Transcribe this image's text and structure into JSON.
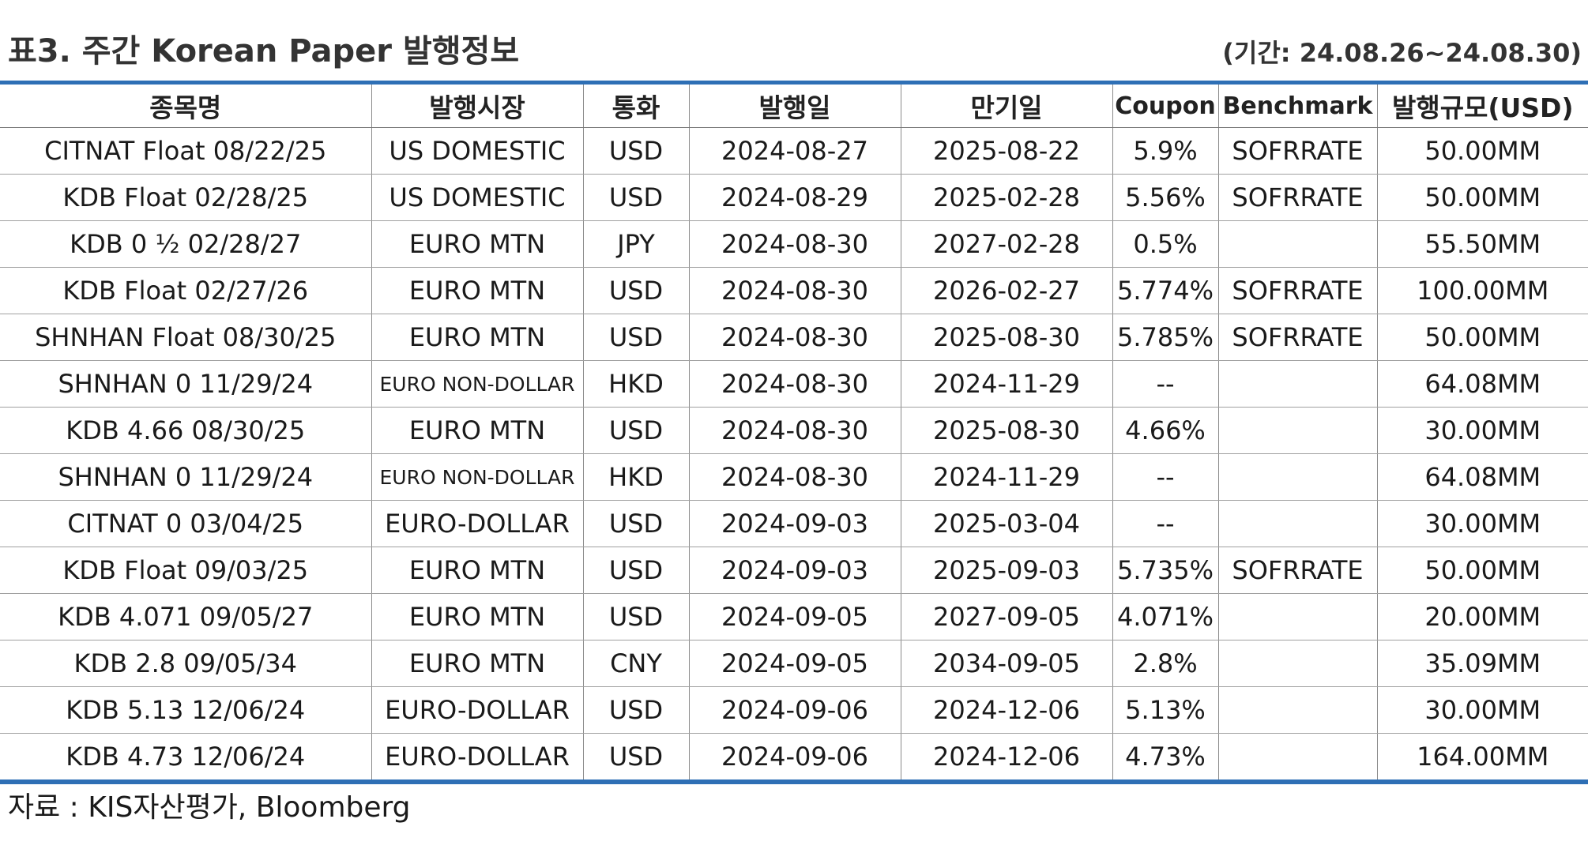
{
  "title": "표3. 주간 Korean Paper 발행정보",
  "period": "(기간: 24.08.26~24.08.30)",
  "columns": [
    "종목명",
    "발행시장",
    "통화",
    "발행일",
    "만기일",
    "Coupon",
    "Benchmark",
    "발행규모(USD)"
  ],
  "rows": [
    [
      "CITNAT Float 08/22/25",
      "US DOMESTIC",
      "USD",
      "2024-08-27",
      "2025-08-22",
      "5.9%",
      "SOFRRATE",
      "50.00MM"
    ],
    [
      "KDB Float 02/28/25",
      "US DOMESTIC",
      "USD",
      "2024-08-29",
      "2025-02-28",
      "5.56%",
      "SOFRRATE",
      "50.00MM"
    ],
    [
      "KDB 0 ½ 02/28/27",
      "EURO MTN",
      "JPY",
      "2024-08-30",
      "2027-02-28",
      "0.5%",
      "",
      "55.50MM"
    ],
    [
      "KDB Float 02/27/26",
      "EURO MTN",
      "USD",
      "2024-08-30",
      "2026-02-27",
      "5.774%",
      "SOFRRATE",
      "100.00MM"
    ],
    [
      "SHNHAN Float 08/30/25",
      "EURO MTN",
      "USD",
      "2024-08-30",
      "2025-08-30",
      "5.785%",
      "SOFRRATE",
      "50.00MM"
    ],
    [
      "SHNHAN 0 11/29/24",
      "EURO NON-DOLLAR",
      "HKD",
      "2024-08-30",
      "2024-11-29",
      "--",
      "",
      "64.08MM"
    ],
    [
      "KDB 4.66 08/30/25",
      "EURO MTN",
      "USD",
      "2024-08-30",
      "2025-08-30",
      "4.66%",
      "",
      "30.00MM"
    ],
    [
      "SHNHAN 0 11/29/24",
      "EURO NON-DOLLAR",
      "HKD",
      "2024-08-30",
      "2024-11-29",
      "--",
      "",
      "64.08MM"
    ],
    [
      "CITNAT 0 03/04/25",
      "EURO-DOLLAR",
      "USD",
      "2024-09-03",
      "2025-03-04",
      "--",
      "",
      "30.00MM"
    ],
    [
      "KDB Float 09/03/25",
      "EURO MTN",
      "USD",
      "2024-09-03",
      "2025-09-03",
      "5.735%",
      "SOFRRATE",
      "50.00MM"
    ],
    [
      "KDB 4.071 09/05/27",
      "EURO MTN",
      "USD",
      "2024-09-05",
      "2027-09-05",
      "4.071%",
      "",
      "20.00MM"
    ],
    [
      "KDB 2.8 09/05/34",
      "EURO MTN",
      "CNY",
      "2024-09-05",
      "2034-09-05",
      "2.8%",
      "",
      "35.09MM"
    ],
    [
      "KDB 5.13 12/06/24",
      "EURO-DOLLAR",
      "USD",
      "2024-09-06",
      "2024-12-06",
      "5.13%",
      "",
      "30.00MM"
    ],
    [
      "KDB 4.73 12/06/24",
      "EURO-DOLLAR",
      "USD",
      "2024-09-06",
      "2024-12-06",
      "4.73%",
      "",
      "164.00MM"
    ]
  ],
  "source": "자료 : KIS자산평가, Bloomberg",
  "colors": {
    "rule": "#2e6fb5",
    "text": "#1a1a1a"
  }
}
